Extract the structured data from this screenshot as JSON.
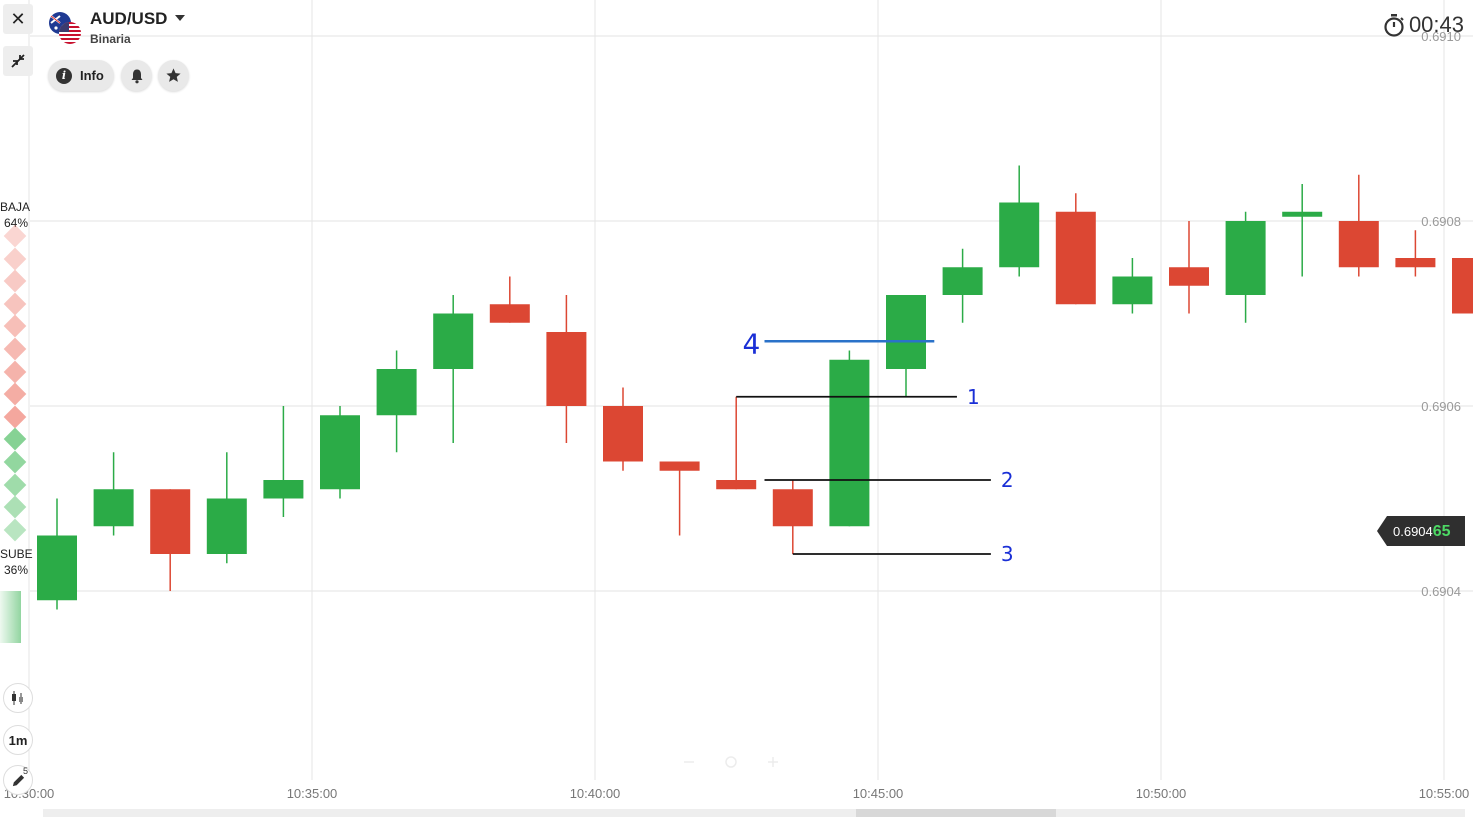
{
  "header": {
    "pair": "AUD/USD",
    "subtitle": "Binaria",
    "info_label": "Info",
    "timer": "00:43"
  },
  "icons": {
    "close": "close-icon",
    "minimize": "minimize-icon",
    "info": "info-icon",
    "bell": "bell-icon",
    "star": "star-icon",
    "stopwatch": "stopwatch-icon",
    "candles": "candles-icon",
    "pencil": "pencil-icon",
    "flag": "aud-usd-flag-icon"
  },
  "sentiment": {
    "down_label": "BAJA",
    "down_pct": "64%",
    "up_label": "SUBE",
    "up_pct": "36%",
    "down_color": "#f08a7e",
    "up_color": "#7fd08e"
  },
  "tools": {
    "timeframe": "1m",
    "drawings_count": "5"
  },
  "current_price": {
    "main": "0.6904",
    "tail": "65",
    "value": 0.690465
  },
  "colors": {
    "up": "#2bab47",
    "down": "#dc4733",
    "annotation": "#1a2fd6",
    "level_line": "#111111",
    "blue_line": "#2a72c9"
  },
  "chart_data": {
    "type": "candlestick",
    "x_ticks": [
      "10:30:00",
      "10:35:00",
      "10:40:00",
      "10:45:00",
      "10:50:00",
      "10:55:00"
    ],
    "y_ticks": [
      "0.6904",
      "0.6906",
      "0.6908",
      "0.6910"
    ],
    "ylim": [
      0.69028,
      0.69112
    ],
    "candles": [
      {
        "t": "10:30",
        "open": 0.69039,
        "close": 0.69046,
        "high": 0.6905,
        "low": 0.69038
      },
      {
        "t": "10:31",
        "open": 0.69047,
        "close": 0.69051,
        "high": 0.69055,
        "low": 0.69046
      },
      {
        "t": "10:32",
        "open": 0.69051,
        "close": 0.69044,
        "high": 0.69051,
        "low": 0.6904
      },
      {
        "t": "10:33",
        "open": 0.69044,
        "close": 0.6905,
        "high": 0.69055,
        "low": 0.69043
      },
      {
        "t": "10:34",
        "open": 0.6905,
        "close": 0.69052,
        "high": 0.6906,
        "low": 0.69048
      },
      {
        "t": "10:35",
        "open": 0.69051,
        "close": 0.69059,
        "high": 0.6906,
        "low": 0.6905
      },
      {
        "t": "10:36",
        "open": 0.69059,
        "close": 0.69064,
        "high": 0.69066,
        "low": 0.69055
      },
      {
        "t": "10:37",
        "open": 0.69064,
        "close": 0.6907,
        "high": 0.69072,
        "low": 0.69056
      },
      {
        "t": "10:38",
        "open": 0.69071,
        "close": 0.69069,
        "high": 0.69074,
        "low": 0.69069
      },
      {
        "t": "10:39",
        "open": 0.69068,
        "close": 0.6906,
        "high": 0.69072,
        "low": 0.69056
      },
      {
        "t": "10:40",
        "open": 0.6906,
        "close": 0.69054,
        "high": 0.69062,
        "low": 0.69053
      },
      {
        "t": "10:41",
        "open": 0.69054,
        "close": 0.69053,
        "high": 0.69054,
        "low": 0.69046
      },
      {
        "t": "10:42",
        "open": 0.69052,
        "close": 0.69051,
        "high": 0.69061,
        "low": 0.69051
      },
      {
        "t": "10:43",
        "open": 0.69051,
        "close": 0.69047,
        "high": 0.69052,
        "low": 0.69044
      },
      {
        "t": "10:44",
        "open": 0.69047,
        "close": 0.69065,
        "high": 0.69066,
        "low": 0.69047
      },
      {
        "t": "10:45",
        "open": 0.69064,
        "close": 0.69072,
        "high": 0.69072,
        "low": 0.69061
      },
      {
        "t": "10:46",
        "open": 0.69072,
        "close": 0.69075,
        "high": 0.69077,
        "low": 0.69069
      },
      {
        "t": "10:47",
        "open": 0.69075,
        "close": 0.69082,
        "high": 0.69086,
        "low": 0.69074
      },
      {
        "t": "10:48",
        "open": 0.69081,
        "close": 0.69071,
        "high": 0.69083,
        "low": 0.69071
      },
      {
        "t": "10:49",
        "open": 0.69071,
        "close": 0.69074,
        "high": 0.69076,
        "low": 0.6907
      },
      {
        "t": "10:50",
        "open": 0.69075,
        "close": 0.69073,
        "high": 0.6908,
        "low": 0.6907
      },
      {
        "t": "10:51",
        "open": 0.69072,
        "close": 0.6908,
        "high": 0.69081,
        "low": 0.69069
      },
      {
        "t": "10:52",
        "open": 0.69081,
        "close": 0.69081,
        "high": 0.69084,
        "low": 0.69074
      },
      {
        "t": "10:53",
        "open": 0.6908,
        "close": 0.69075,
        "high": 0.69085,
        "low": 0.69074
      },
      {
        "t": "10:54",
        "open": 0.69076,
        "close": 0.69075,
        "high": 0.69079,
        "low": 0.69074
      },
      {
        "t": "10:55",
        "open": 0.69076,
        "close": 0.6907,
        "high": 0.69076,
        "low": 0.6907
      }
    ],
    "annotations": [
      {
        "label": "4",
        "price": 0.69067,
        "from": "10:42.5",
        "to": "10:45.5"
      },
      {
        "label": "1",
        "price": 0.69061,
        "from": "10:42",
        "to": "10:45.9"
      },
      {
        "label": "2",
        "price": 0.69052,
        "from": "10:42.5",
        "to": "10:46.5"
      },
      {
        "label": "3",
        "price": 0.69044,
        "from": "10:43",
        "to": "10:46.5"
      }
    ]
  }
}
